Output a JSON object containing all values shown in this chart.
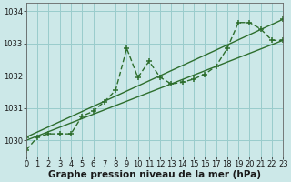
{
  "xlabel": "Graphe pression niveau de la mer (hPa)",
  "background_color": "#cce8e8",
  "grid_color": "#99cccc",
  "line_color": "#2d6e2d",
  "xlim": [
    0,
    23
  ],
  "ylim": [
    1029.5,
    1034.25
  ],
  "yticks": [
    1030,
    1031,
    1032,
    1033,
    1034
  ],
  "xticks": [
    0,
    1,
    2,
    3,
    4,
    5,
    6,
    7,
    8,
    9,
    10,
    11,
    12,
    13,
    14,
    15,
    16,
    17,
    18,
    19,
    20,
    21,
    22,
    23
  ],
  "line1_x": [
    0,
    1,
    2,
    3,
    4,
    5,
    6,
    7,
    8,
    9,
    10,
    11,
    12,
    13,
    14,
    15,
    16,
    17,
    18,
    19,
    20,
    21,
    22,
    23
  ],
  "line1_y": [
    1029.7,
    1030.1,
    1030.2,
    1030.2,
    1030.2,
    1030.75,
    1030.9,
    1031.2,
    1031.55,
    1032.85,
    1031.95,
    1032.45,
    1031.95,
    1031.75,
    1031.8,
    1031.9,
    1032.05,
    1032.3,
    1032.85,
    1033.65,
    1033.65,
    1033.45,
    1033.1,
    1033.1
  ],
  "line2_x": [
    0,
    23
  ],
  "line2_y": [
    1030.0,
    1033.1
  ],
  "line3_x": [
    0,
    23
  ],
  "line3_y": [
    1030.1,
    1033.75
  ],
  "tick_fontsize": 6.0,
  "label_fontsize": 7.5,
  "linewidth": 1.0,
  "markersize": 4.0
}
